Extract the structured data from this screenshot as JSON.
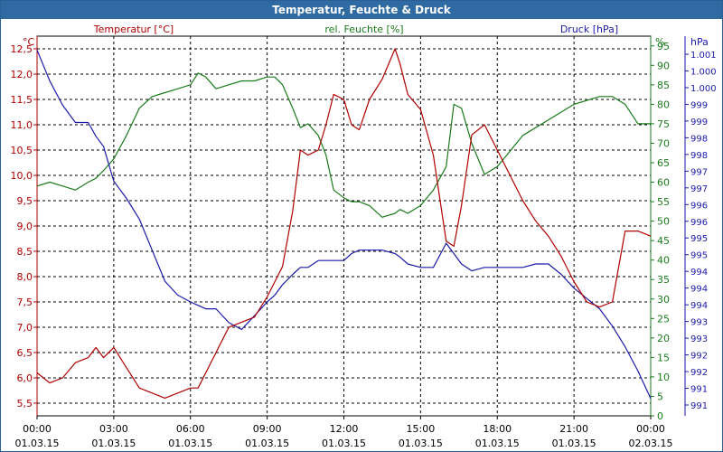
{
  "chart_data": {
    "type": "line",
    "title": "Temperatur, Feuchte & Druck",
    "series": [
      {
        "name": "Temperatur [°C]",
        "unit": "°C",
        "axis": "left",
        "color": "#b00000",
        "ylim": [
          5.25,
          12.75
        ],
        "ticks": [
          "5,5",
          "6,0",
          "6,5",
          "7,0",
          "7,5",
          "8,0",
          "8,5",
          "9,0",
          "9,5",
          "10,0",
          "10,5",
          "11,0",
          "11,5",
          "12,0",
          "12,5"
        ],
        "x": [
          0,
          0.5,
          1,
          1.5,
          2,
          2.3,
          2.6,
          3,
          3.5,
          4,
          4.5,
          5,
          5.5,
          6,
          6.3,
          6.6,
          7,
          7.5,
          8,
          8.5,
          9,
          9.3,
          9.6,
          10,
          10.3,
          10.6,
          11,
          11.3,
          11.6,
          12,
          12.3,
          12.6,
          13,
          13.5,
          14,
          14.2,
          14.5,
          15,
          15.5,
          16,
          16.3,
          16.6,
          17,
          17.5,
          18,
          18.5,
          19,
          19.5,
          20,
          20.5,
          21,
          21.5,
          22,
          22.5,
          23,
          23.5,
          24
        ],
        "y": [
          6.1,
          5.9,
          6.0,
          6.3,
          6.4,
          6.6,
          6.4,
          6.6,
          6.2,
          5.8,
          5.7,
          5.6,
          5.7,
          5.8,
          5.8,
          6.1,
          6.5,
          7.0,
          7.1,
          7.2,
          7.6,
          7.9,
          8.2,
          9.3,
          10.5,
          10.4,
          10.5,
          11.0,
          11.6,
          11.5,
          11.0,
          10.9,
          11.5,
          11.9,
          12.5,
          12.2,
          11.6,
          11.3,
          10.4,
          8.7,
          8.6,
          9.4,
          10.8,
          11.0,
          10.5,
          10.0,
          9.5,
          9.1,
          8.8,
          8.4,
          7.9,
          7.5,
          7.4,
          7.5,
          8.9,
          8.9,
          8.8
        ]
      },
      {
        "name": "rel. Feuchte [%]",
        "unit": "%",
        "axis": "right-inner",
        "color": "#1a7a1a",
        "ylim": [
          0,
          97.5
        ],
        "ticks": [
          "0",
          "5",
          "10",
          "15",
          "20",
          "25",
          "30",
          "35",
          "40",
          "45",
          "50",
          "55",
          "60",
          "65",
          "70",
          "75",
          "80",
          "85",
          "90",
          "95"
        ],
        "x": [
          0,
          0.5,
          1,
          1.5,
          2,
          2.3,
          2.6,
          3,
          3.5,
          4,
          4.5,
          5,
          5.5,
          6,
          6.3,
          6.6,
          7,
          7.5,
          8,
          8.5,
          9,
          9.3,
          9.6,
          10,
          10.3,
          10.6,
          11,
          11.3,
          11.6,
          12,
          12.3,
          12.6,
          13,
          13.5,
          14,
          14.2,
          14.5,
          15,
          15.5,
          16,
          16.3,
          16.6,
          17,
          17.5,
          18,
          18.5,
          19,
          19.5,
          20,
          20.5,
          21,
          21.5,
          22,
          22.5,
          23,
          23.5,
          24
        ],
        "y": [
          59,
          60,
          59,
          58,
          60,
          61,
          63,
          66,
          72,
          79,
          82,
          83,
          84,
          85,
          88,
          87,
          84,
          85,
          86,
          86,
          87,
          87,
          85,
          79,
          74,
          75,
          72,
          67,
          58,
          56,
          55,
          55,
          54,
          51,
          52,
          53,
          52,
          54,
          58,
          64,
          80,
          79,
          70,
          62,
          64,
          68,
          72,
          74,
          76,
          78,
          80,
          81,
          82,
          82,
          80,
          75,
          75
        ]
      },
      {
        "name": "Druck [hPa]",
        "unit": "hPa",
        "axis": "right-outer",
        "color": "#1a1aa8",
        "ylim": [
          990.5,
          1001.5
        ],
        "ticks": [
          "991",
          "991",
          "992",
          "992",
          "993",
          "993",
          "994",
          "994",
          "994",
          "995",
          "995",
          "996",
          "996",
          "997",
          "997",
          "998",
          "998",
          "999",
          "999",
          "1.000",
          "1.000",
          "1.001"
        ],
        "x": [
          0,
          0.5,
          1,
          1.5,
          2,
          2.3,
          2.6,
          3,
          3.5,
          4,
          4.5,
          5,
          5.5,
          6,
          6.3,
          6.6,
          7,
          7.5,
          8,
          8.5,
          9,
          9.3,
          9.6,
          10,
          10.3,
          10.6,
          11,
          11.3,
          11.6,
          12,
          12.3,
          12.6,
          13,
          13.5,
          14,
          14.2,
          14.5,
          15,
          15.5,
          16,
          16.3,
          16.6,
          17,
          17.5,
          18,
          18.5,
          19,
          19.5,
          20,
          20.5,
          21,
          21.5,
          22,
          22.5,
          23,
          23.5,
          24
        ],
        "y": [
          1001.1,
          1000.2,
          999.5,
          999.0,
          999.0,
          998.6,
          998.3,
          997.3,
          996.8,
          996.2,
          995.3,
          994.4,
          994.0,
          993.8,
          993.7,
          993.6,
          993.6,
          993.2,
          993.0,
          993.4,
          993.8,
          994.0,
          994.3,
          994.6,
          994.8,
          994.8,
          995.0,
          995.0,
          995.0,
          995.0,
          995.2,
          995.3,
          995.3,
          995.3,
          995.2,
          995.1,
          994.9,
          994.8,
          994.8,
          995.5,
          995.2,
          994.9,
          994.7,
          994.8,
          994.8,
          994.8,
          994.8,
          994.9,
          994.9,
          994.6,
          994.2,
          993.9,
          993.6,
          993.1,
          992.5,
          991.8,
          991.0
        ]
      }
    ],
    "x_range": [
      0,
      24
    ],
    "x_tick_times": [
      "00:00",
      "03:00",
      "06:00",
      "09:00",
      "12:00",
      "15:00",
      "18:00",
      "21:00",
      "00:00"
    ],
    "x_tick_dates": [
      "01.03.15",
      "01.03.15",
      "01.03.15",
      "01.03.15",
      "01.03.15",
      "01.03.15",
      "01.03.15",
      "01.03.15",
      "02.03.15"
    ],
    "grid": true,
    "legend_position": "top"
  }
}
